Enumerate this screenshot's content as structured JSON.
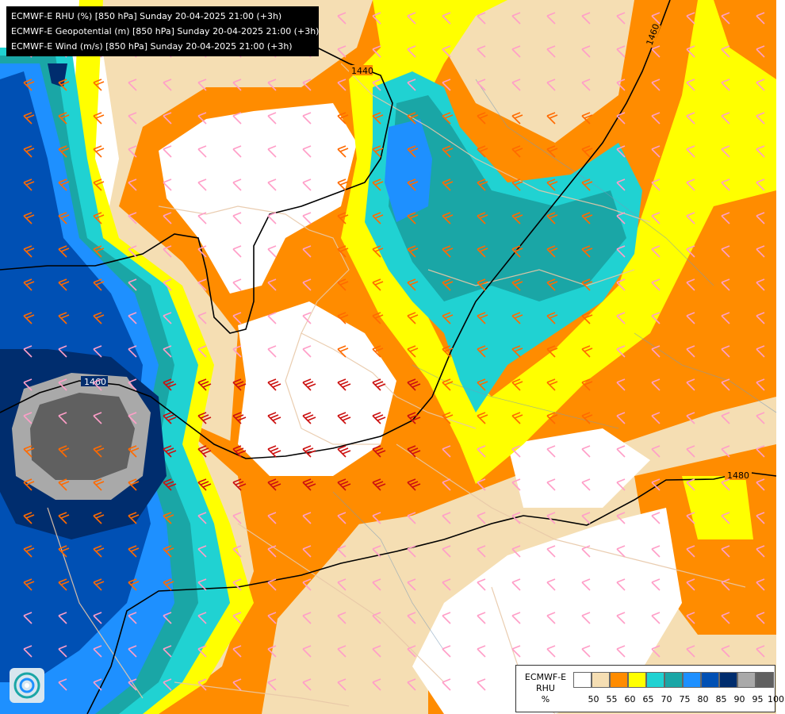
{
  "header": {
    "lines": [
      "ECMWF-E RHU (%) [850 hPa] Sunday 20-04-2025 21:00 (+3h)",
      "ECMWF-E Geopotential (m) [850 hPa] Sunday 20-04-2025 21:00 (+3h)",
      "ECMWF-E Wind (m/s) [850 hPa] Sunday 20-04-2025 21:00 (+3h)"
    ]
  },
  "contour_labels": [
    "1440",
    "1460",
    "1460",
    "1480"
  ],
  "legend": {
    "title_lines": [
      "ECMWF-E",
      "RHU",
      "%"
    ],
    "classes": [
      {
        "label": "50",
        "color": "#ffffff"
      },
      {
        "label": "55",
        "color": "#f5deb3"
      },
      {
        "label": "60",
        "color": "#ff8c00"
      },
      {
        "label": "65",
        "color": "#ffff00"
      },
      {
        "label": "70",
        "color": "#20d2d2"
      },
      {
        "label": "75",
        "color": "#1aa6a6"
      },
      {
        "label": "80",
        "color": "#1e90ff"
      },
      {
        "label": "85",
        "color": "#0050b4"
      },
      {
        "label": "90",
        "color": "#002d6e"
      },
      {
        "label": "95",
        "color": "#a9a9a9"
      },
      {
        "label": "100",
        "color": "#606060"
      }
    ]
  },
  "colors": {
    "wind_weak": "#ff9ec8",
    "wind_medium": "#ff6a00",
    "wind_strong": "#cc1010",
    "contour": "#000000",
    "borders": "#e8c8a8"
  },
  "icons": {
    "logo": "meteo-logo-icon"
  }
}
